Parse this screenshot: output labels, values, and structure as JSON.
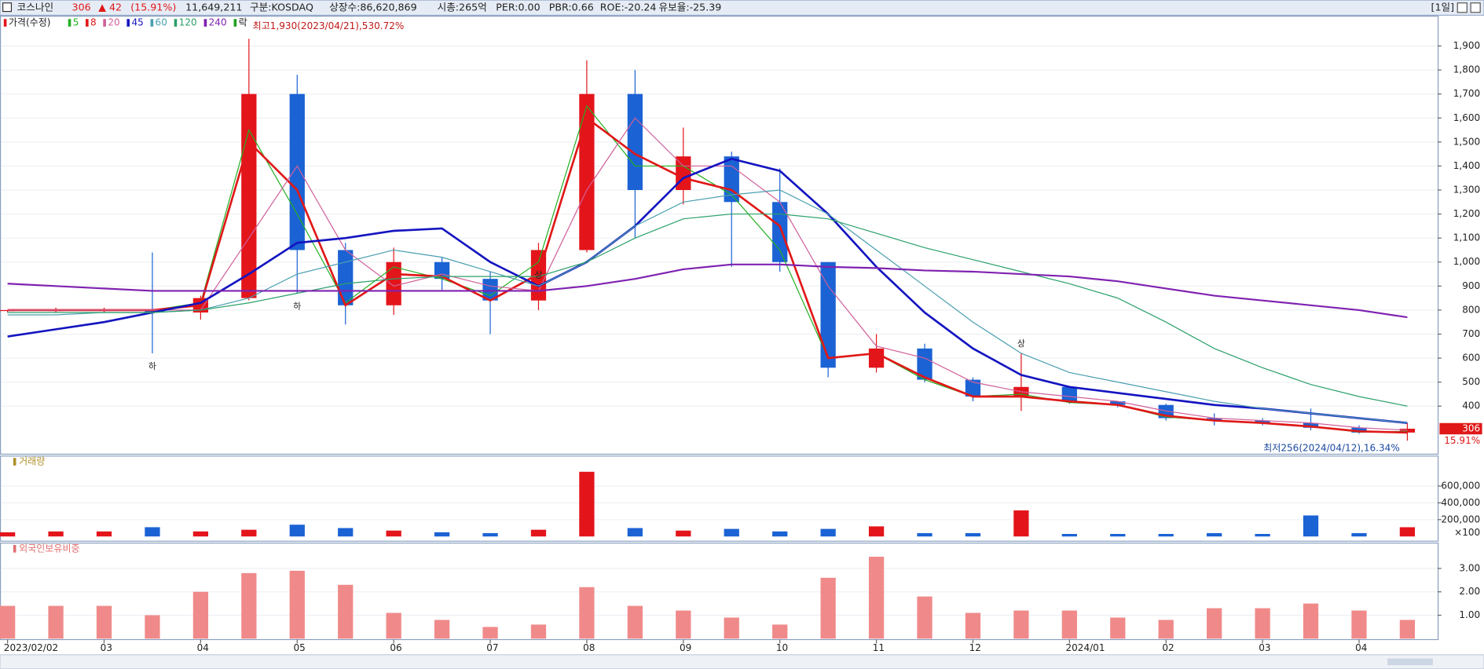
{
  "header": {
    "name": "코스나인",
    "price": "306",
    "change": "▲ 42",
    "change_pct": "(15.91%)",
    "volume": "11,649,211",
    "market": "구분:KOSDAQ",
    "shares": "상장수:86,620,869",
    "cap": "시총:265억",
    "per": "PER:0.00",
    "pbr": "PBR:0.66",
    "roe": "ROE:-20.24",
    "reserve": "유보율:-25.39",
    "period": "[1일]"
  },
  "chart_data": [
    {
      "type": "candlestick",
      "title": "가격(수정)",
      "categories": [
        "2023/02/02",
        null,
        "03",
        null,
        "04",
        null,
        "05",
        null,
        "06",
        null,
        "07",
        null,
        "08",
        null,
        "09",
        null,
        "10",
        null,
        "11",
        null,
        "12",
        null,
        "2024/01",
        null,
        "02",
        null,
        "03",
        null,
        "04",
        null
      ],
      "open": [
        800,
        800,
        800,
        800,
        790,
        850,
        1700,
        1050,
        820,
        1000,
        930,
        840,
        1050,
        1700,
        1300,
        1440,
        1250,
        1000,
        560,
        640,
        510,
        440,
        480,
        420,
        405,
        350,
        340,
        330,
        310,
        290
      ],
      "high": [
        800,
        810,
        810,
        1040,
        860,
        1930,
        1780,
        1080,
        1060,
        1020,
        960,
        1080,
        1840,
        1800,
        1560,
        1460,
        1390,
        1000,
        700,
        660,
        520,
        620,
        480,
        420,
        410,
        370,
        350,
        390,
        320,
        330
      ],
      "low": [
        790,
        790,
        790,
        620,
        760,
        840,
        870,
        740,
        780,
        880,
        700,
        800,
        1040,
        1100,
        1240,
        980,
        960,
        520,
        540,
        500,
        420,
        380,
        410,
        395,
        340,
        320,
        320,
        300,
        285,
        256
      ],
      "close": [
        800,
        800,
        800,
        790,
        850,
        1700,
        1050,
        820,
        1000,
        930,
        840,
        1050,
        1700,
        1300,
        1440,
        1250,
        1000,
        560,
        640,
        510,
        440,
        480,
        420,
        405,
        350,
        340,
        330,
        310,
        290,
        306
      ],
      "up_color": "#e3151b",
      "down_color": "#1b62d4",
      "series": [
        {
          "name": "5",
          "color": "#22b022",
          "width": 1,
          "values": [
            800,
            800,
            800,
            800,
            830,
            1550,
            1200,
            830,
            980,
            930,
            860,
            1000,
            1650,
            1400,
            1400,
            1280,
            1050,
            600,
            620,
            510,
            440,
            450,
            415,
            405,
            355,
            340,
            330,
            315,
            292,
            295
          ]
        },
        {
          "name": "8",
          "color": "#e01818",
          "width": 2.2,
          "values": [
            800,
            800,
            800,
            800,
            820,
            1500,
            1300,
            820,
            950,
            940,
            840,
            950,
            1600,
            1450,
            1350,
            1300,
            1150,
            600,
            620,
            520,
            440,
            440,
            420,
            405,
            360,
            340,
            330,
            315,
            295,
            290
          ]
        },
        {
          "name": "20",
          "color": "#d0609a",
          "width": 1,
          "values": [
            800,
            800,
            800,
            800,
            800,
            1100,
            1400,
            1050,
            900,
            950,
            900,
            880,
            1300,
            1600,
            1400,
            1400,
            1250,
            900,
            650,
            600,
            500,
            460,
            440,
            420,
            380,
            350,
            340,
            330,
            310,
            300
          ]
        },
        {
          "name": "45",
          "color": "#1414c0",
          "width": 2.2,
          "values": [
            690,
            720,
            750,
            790,
            830,
            950,
            1080,
            1100,
            1130,
            1140,
            1000,
            900,
            1000,
            1150,
            1350,
            1430,
            1380,
            1200,
            980,
            790,
            640,
            530,
            480,
            455,
            430,
            405,
            390,
            370,
            350,
            330
          ]
        },
        {
          "name": "60",
          "color": "#4a9fb0",
          "width": 1,
          "values": [
            780,
            780,
            790,
            790,
            800,
            850,
            950,
            1000,
            1050,
            1020,
            960,
            900,
            1000,
            1150,
            1250,
            1280,
            1300,
            1200,
            1050,
            900,
            750,
            620,
            540,
            500,
            460,
            420,
            390,
            370,
            350,
            330
          ]
        },
        {
          "name": "120",
          "color": "#2aa06a",
          "width": 1,
          "values": [
            790,
            790,
            790,
            790,
            800,
            830,
            870,
            910,
            930,
            940,
            940,
            940,
            1000,
            1100,
            1180,
            1200,
            1200,
            1180,
            1120,
            1060,
            1010,
            960,
            910,
            850,
            750,
            640,
            560,
            490,
            440,
            400
          ]
        },
        {
          "name": "240",
          "color": "#7f22b0",
          "width": 1.8,
          "values": [
            910,
            900,
            890,
            880,
            880,
            880,
            880,
            880,
            880,
            880,
            880,
            880,
            900,
            930,
            970,
            990,
            990,
            980,
            975,
            965,
            960,
            950,
            940,
            920,
            890,
            860,
            840,
            820,
            800,
            770
          ]
        }
      ],
      "adjust_label": "락",
      "high_annotation": "최고1,930(2023/04/21),530.72%",
      "low_annotation": "최저256(2024/04/12),16.34%",
      "signals": [
        "하",
        "하",
        "상",
        "상"
      ],
      "price_marker": {
        "label": "306",
        "change": "15.91%"
      },
      "ylim": [
        200,
        2020
      ],
      "yticks": [
        400,
        500,
        600,
        700,
        800,
        900,
        {
          "value": 1000,
          "label": "1,000"
        },
        {
          "value": 1100,
          "label": "1,100"
        },
        {
          "value": 1200,
          "label": "1,200"
        },
        {
          "value": 1300,
          "label": "1,300"
        },
        {
          "value": 1400,
          "label": "1,400"
        },
        {
          "value": 1500,
          "label": "1,500"
        },
        {
          "value": 1600,
          "label": "1,600"
        },
        {
          "value": 1700,
          "label": "1,700"
        },
        {
          "value": 1800,
          "label": "1,800"
        },
        {
          "value": 1900,
          "label": "1,900"
        }
      ]
    },
    {
      "type": "bar",
      "title": "거래량",
      "unit": "×100",
      "values": [
        50000,
        60000,
        60000,
        110000,
        60000,
        80000,
        140000,
        100000,
        70000,
        50000,
        40000,
        80000,
        770000,
        100000,
        70000,
        90000,
        60000,
        90000,
        120000,
        40000,
        40000,
        310000,
        30000,
        30000,
        30000,
        40000,
        30000,
        250000,
        40000,
        110000
      ],
      "ylim": [
        0,
        850000
      ],
      "yticks": [
        {
          "value": 200000,
          "label": "200,000"
        },
        {
          "value": 400000,
          "label": "400,000"
        },
        {
          "value": 600000,
          "label": "600,000"
        }
      ]
    },
    {
      "type": "bar",
      "title": "외국인보유비중",
      "color": "#f08a8a",
      "values": [
        1.4,
        1.4,
        1.4,
        1.0,
        2.0,
        2.8,
        2.9,
        2.3,
        1.1,
        0.8,
        0.5,
        0.6,
        2.2,
        1.4,
        1.2,
        0.9,
        0.6,
        2.6,
        3.5,
        1.8,
        1.1,
        1.2,
        1.2,
        0.9,
        0.8,
        1.3,
        1.3,
        1.5,
        1.2,
        0.8
      ],
      "ylim": [
        0,
        3.8
      ],
      "yticks": [
        {
          "value": 1,
          "label": "1.00"
        },
        {
          "value": 2,
          "label": "2.00"
        },
        {
          "value": 3,
          "label": "3.00"
        }
      ]
    }
  ]
}
